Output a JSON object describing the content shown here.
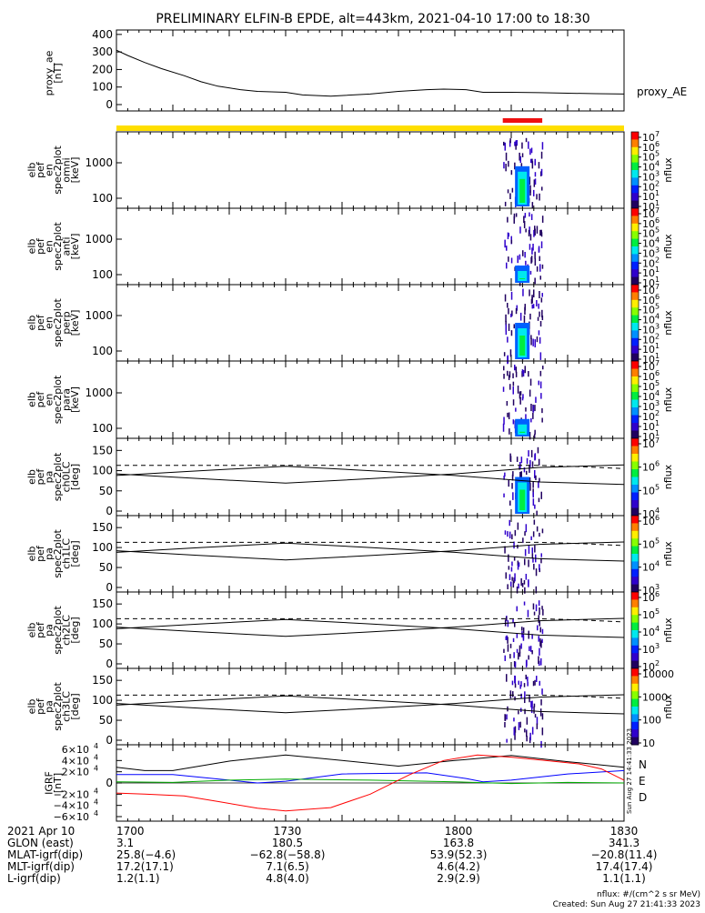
{
  "chart_data": {
    "type": "multi-panel",
    "title": "PRELIMINARY ELFIN-B EPDE, alt=443km, 2021-04-10 17:00 to 18:30",
    "time_range_min": [
      0,
      90
    ],
    "x_tick_labels": [
      "1700",
      "1730",
      "1800",
      "1830"
    ],
    "x_tick_minutes": [
      0,
      30,
      60,
      90
    ],
    "ae_panel": {
      "ylabel": [
        "proxy_ae",
        "[nT]"
      ],
      "series_label": "proxy_AE",
      "ylim": [
        0,
        420
      ],
      "yticks": [
        0,
        100,
        200,
        300,
        400
      ],
      "t": [
        0,
        2,
        5,
        8,
        12,
        15,
        18,
        22,
        25,
        30,
        33,
        38,
        45,
        50,
        55,
        58,
        62,
        65,
        70,
        75,
        80,
        85,
        90
      ],
      "values": [
        310,
        280,
        240,
        205,
        165,
        130,
        105,
        85,
        75,
        70,
        55,
        48,
        60,
        75,
        85,
        88,
        85,
        70,
        70,
        68,
        65,
        62,
        60
      ]
    },
    "science_bars": {
      "yellow_full": true,
      "red_start_min": 68.5,
      "red_end_min": 75.5
    },
    "energy_panels": [
      {
        "ylabel": [
          "elb",
          "pef",
          "en",
          "spec2plot",
          "omni",
          "[keV]"
        ],
        "yticks": [
          "100",
          "1000"
        ],
        "cbar": "nflux",
        "cbar_ticks": [
          "10",
          "10",
          "10",
          "10",
          "10",
          "10",
          "10",
          "10"
        ],
        "cbar_exps": [
          "7",
          "6",
          "5",
          "4",
          "3",
          "2",
          "1",
          "1"
        ]
      },
      {
        "ylabel": [
          "elb",
          "pef",
          "en",
          "spec2plot",
          "anti",
          "[keV]"
        ],
        "yticks": [
          "100",
          "1000"
        ],
        "cbar": "nflux",
        "cbar_ticks": [
          "10",
          "10",
          "10",
          "10",
          "10",
          "10",
          "10",
          "10"
        ],
        "cbar_exps": [
          "7",
          "6",
          "5",
          "4",
          "3",
          "2",
          "1",
          "1"
        ]
      },
      {
        "ylabel": [
          "elb",
          "pef",
          "en",
          "spec2plot",
          "perp",
          "[keV]"
        ],
        "yticks": [
          "100",
          "1000"
        ],
        "cbar": "nflux",
        "cbar_ticks": [
          "10",
          "10",
          "10",
          "10",
          "10",
          "10",
          "10",
          "10"
        ],
        "cbar_exps": [
          "7",
          "6",
          "5",
          "4",
          "3",
          "2",
          "1",
          "1"
        ]
      },
      {
        "ylabel": [
          "elb",
          "pef",
          "en",
          "spec2plot",
          "para",
          "[keV]"
        ],
        "yticks": [
          "100",
          "1000"
        ],
        "cbar": "nflux",
        "cbar_ticks": [
          "10",
          "10",
          "10",
          "10",
          "10",
          "10",
          "10",
          "10"
        ],
        "cbar_exps": [
          "7",
          "6",
          "5",
          "4",
          "3",
          "2",
          "1",
          "1"
        ]
      }
    ],
    "pitch_panels": [
      {
        "ylabel": [
          "elb",
          "pef",
          "pa",
          "spec2plot",
          "ch0LC",
          "[deg]"
        ],
        "yticks": [
          "0",
          "50",
          "100",
          "150"
        ],
        "cbar": "nflux",
        "cbar_ticks": [
          "10",
          "10",
          "10",
          "10"
        ],
        "cbar_exps": [
          "7",
          "6",
          "5",
          "4"
        ]
      },
      {
        "ylabel": [
          "elb",
          "pef",
          "pa",
          "spec2plot",
          "ch1LC",
          "[deg]"
        ],
        "yticks": [
          "0",
          "50",
          "100",
          "150"
        ],
        "cbar": "nflux",
        "cbar_ticks": [
          "10",
          "10",
          "10",
          "10"
        ],
        "cbar_exps": [
          "6",
          "5",
          "4",
          "3"
        ]
      },
      {
        "ylabel": [
          "elb",
          "pef",
          "pa",
          "spec2plot",
          "ch2LC",
          "[deg]"
        ],
        "yticks": [
          "0",
          "50",
          "100",
          "150"
        ],
        "cbar": "nflux",
        "cbar_ticks": [
          "10",
          "10",
          "10",
          "10",
          "10"
        ],
        "cbar_exps": [
          "6",
          "5",
          "4",
          "3",
          "2"
        ]
      },
      {
        "ylabel": [
          "elb",
          "pef",
          "pa",
          "spec2plot",
          "ch3LC",
          "[deg]"
        ],
        "yticks": [
          "0",
          "50",
          "100",
          "150"
        ],
        "cbar": "nflux",
        "cbar_ticks": [
          "10000",
          "1000",
          "100",
          "10"
        ],
        "cbar_exps": [
          "",
          "",
          "",
          ""
        ]
      }
    ],
    "pa_ylim": [
      0,
      180
    ],
    "pa_loss_cone": {
      "t": [
        0,
        15,
        30,
        45,
        60,
        75,
        90
      ],
      "values": [
        88,
        100,
        111,
        100,
        88,
        72,
        66
      ]
    },
    "pa_anti_loss_cone": {
      "t": [
        0,
        15,
        30,
        45,
        60,
        75,
        90
      ],
      "values": [
        92,
        80,
        69,
        80,
        92,
        108,
        114
      ]
    },
    "pa_dashed": {
      "t": [
        0,
        30,
        60,
        70,
        75,
        82,
        90
      ],
      "values": [
        113,
        113,
        113,
        113,
        113,
        110,
        105
      ]
    },
    "igrf_panel": {
      "ylabel": [
        "IGRF",
        "[nT]"
      ],
      "ylim": [
        -60000,
        60000
      ],
      "ytick_mantissas": [
        "6",
        "4",
        "2",
        "0",
        "−2",
        "−4",
        "−6"
      ],
      "ytick_values": [
        60000,
        40000,
        20000,
        0,
        -20000,
        -40000,
        -60000
      ],
      "ytick_exp": "4",
      "legend": [
        "N",
        "E",
        "D"
      ],
      "legend_colors": [
        "#000000",
        "#0000ff",
        "#ff0000"
      ],
      "stamp": "Sun Aug 27 14:41:33 2023",
      "series": [
        {
          "name": "black",
          "color": "#000000",
          "t": [
            0,
            5,
            10,
            20,
            30,
            40,
            50,
            60,
            70,
            80,
            90
          ],
          "values": [
            28000,
            22000,
            22000,
            39000,
            50000,
            40000,
            30000,
            40000,
            49000,
            38000,
            28000
          ]
        },
        {
          "name": "blue",
          "color": "#0000ff",
          "t": [
            0,
            10,
            20,
            25,
            30,
            40,
            55,
            62,
            65,
            70,
            80,
            90
          ],
          "values": [
            15000,
            15000,
            5000,
            0,
            3000,
            16000,
            18000,
            8000,
            2000,
            5000,
            16000,
            22000
          ]
        },
        {
          "name": "green",
          "color": "#00aa00",
          "t": [
            0,
            10,
            20,
            30,
            45,
            60,
            70,
            80,
            90
          ],
          "values": [
            2000,
            1000,
            5000,
            7000,
            5000,
            2000,
            -1000,
            1000,
            0
          ]
        },
        {
          "name": "red",
          "color": "#ff0000",
          "t": [
            0,
            5,
            12,
            18,
            25,
            30,
            38,
            45,
            52,
            58,
            64,
            70,
            76,
            82,
            86,
            90
          ],
          "values": [
            -18000,
            -20000,
            -23000,
            -33000,
            -45000,
            -50000,
            -44000,
            -20000,
            15000,
            40000,
            50000,
            46000,
            40000,
            34000,
            25000,
            5000
          ]
        }
      ]
    },
    "footer_rows": [
      {
        "label": "2021 Apr 10",
        "vals": [
          "1700",
          "1730",
          "1800",
          "1830"
        ]
      },
      {
        "label": "GLON (east)",
        "vals": [
          "3.1",
          "180.5",
          "163.8",
          "341.3"
        ]
      },
      {
        "label": "MLAT-igrf(dip)",
        "vals": [
          "25.8(−4.6)",
          "−62.8(−58.8)",
          "53.9(52.3)",
          "−20.8(11.4)"
        ]
      },
      {
        "label": "MLT-igrf(dip)",
        "vals": [
          "17.2(17.1)",
          "7.1(6.5)",
          "4.6(4.2)",
          "17.4(17.4)"
        ]
      },
      {
        "label": "L-igrf(dip)",
        "vals": [
          "1.2(1.1)",
          "4.8(4.0)",
          "2.9(2.9)",
          "1.1(1.1)"
        ]
      }
    ],
    "footnote": "nflux: #/(cm^2 s sr MeV)",
    "created": "Created: Sun Aug 27 21:41:33 2023"
  }
}
